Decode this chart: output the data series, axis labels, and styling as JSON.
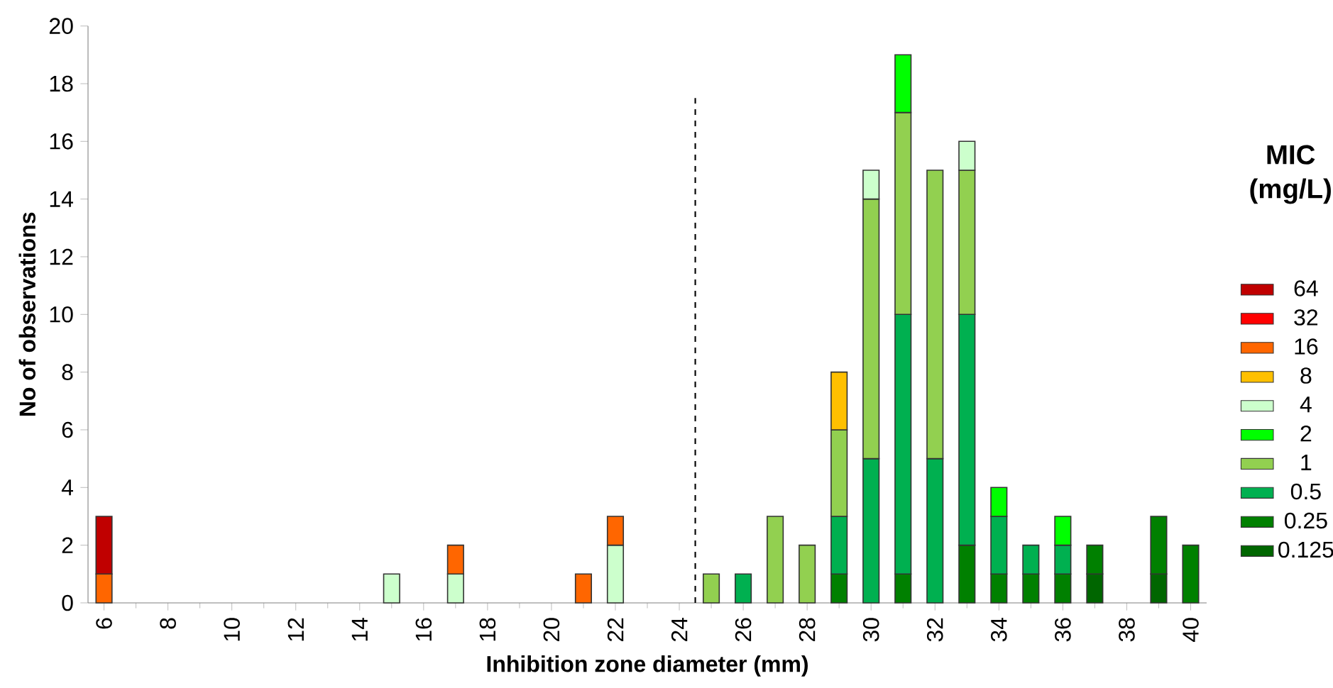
{
  "chart_data": {
    "type": "bar",
    "stacked": true,
    "xlabel": "Inhibition zone diameter (mm)",
    "ylabel": "No of observations",
    "legend_title": "MIC (mg/L)",
    "legend": "right",
    "x": [
      6,
      7,
      8,
      9,
      10,
      11,
      12,
      13,
      14,
      15,
      16,
      17,
      18,
      19,
      20,
      21,
      22,
      23,
      24,
      25,
      26,
      27,
      28,
      29,
      30,
      31,
      32,
      33,
      34,
      35,
      36,
      37,
      38,
      39,
      40
    ],
    "xlim": [
      5.5,
      40.5
    ],
    "xticks": [
      6,
      8,
      10,
      12,
      14,
      16,
      18,
      20,
      22,
      24,
      26,
      28,
      30,
      32,
      34,
      36,
      38,
      40
    ],
    "ylim": [
      0,
      20
    ],
    "yticks": [
      0,
      2,
      4,
      6,
      8,
      10,
      12,
      14,
      16,
      18,
      20
    ],
    "ref_lines": [
      {
        "axis": "x",
        "value": 24.5,
        "line_style": "dashed",
        "color": "#000000"
      }
    ],
    "series": [
      {
        "name": "0.125",
        "color": "#006600",
        "values": [
          null,
          null,
          null,
          null,
          null,
          null,
          null,
          null,
          null,
          null,
          null,
          null,
          null,
          null,
          null,
          null,
          null,
          null,
          null,
          null,
          null,
          null,
          null,
          null,
          null,
          null,
          null,
          null,
          null,
          null,
          null,
          1,
          null,
          1,
          null
        ]
      },
      {
        "name": "0.25",
        "color": "#008000",
        "values": [
          null,
          null,
          null,
          null,
          null,
          null,
          null,
          null,
          null,
          null,
          null,
          null,
          null,
          null,
          null,
          null,
          null,
          null,
          null,
          null,
          null,
          null,
          null,
          1,
          null,
          1,
          null,
          2,
          1,
          1,
          1,
          1,
          null,
          2,
          2
        ]
      },
      {
        "name": "0.5",
        "color": "#00b050",
        "values": [
          null,
          null,
          null,
          null,
          null,
          null,
          null,
          null,
          null,
          null,
          null,
          null,
          null,
          null,
          null,
          null,
          null,
          null,
          null,
          null,
          1,
          null,
          null,
          2,
          5,
          9,
          5,
          8,
          2,
          1,
          1,
          null,
          null,
          null,
          null
        ]
      },
      {
        "name": "1",
        "color": "#92d050",
        "values": [
          null,
          null,
          null,
          null,
          null,
          null,
          null,
          null,
          null,
          null,
          null,
          null,
          null,
          null,
          null,
          null,
          null,
          null,
          null,
          1,
          null,
          3,
          2,
          3,
          9,
          7,
          10,
          5,
          null,
          null,
          null,
          null,
          null,
          null,
          null
        ]
      },
      {
        "name": "2",
        "color": "#00ff00",
        "values": [
          null,
          null,
          null,
          null,
          null,
          null,
          null,
          null,
          null,
          null,
          null,
          null,
          null,
          null,
          null,
          null,
          null,
          null,
          null,
          null,
          null,
          null,
          null,
          null,
          null,
          2,
          null,
          null,
          1,
          null,
          1,
          null,
          null,
          null,
          null
        ]
      },
      {
        "name": "4",
        "color": "#ccffcc",
        "values": [
          null,
          null,
          null,
          null,
          null,
          null,
          null,
          null,
          null,
          1,
          null,
          1,
          null,
          null,
          null,
          null,
          2,
          null,
          null,
          null,
          null,
          null,
          null,
          null,
          1,
          null,
          null,
          1,
          null,
          null,
          null,
          null,
          null,
          null,
          null
        ]
      },
      {
        "name": "8",
        "color": "#ffc000",
        "values": [
          null,
          null,
          null,
          null,
          null,
          null,
          null,
          null,
          null,
          null,
          null,
          null,
          null,
          null,
          null,
          null,
          null,
          null,
          null,
          null,
          null,
          null,
          null,
          2,
          null,
          null,
          null,
          null,
          null,
          null,
          null,
          null,
          null,
          null,
          null
        ]
      },
      {
        "name": "16",
        "color": "#ff6600",
        "values": [
          1,
          null,
          null,
          null,
          null,
          null,
          null,
          null,
          null,
          null,
          null,
          1,
          null,
          null,
          null,
          1,
          1,
          null,
          null,
          null,
          null,
          null,
          null,
          null,
          null,
          null,
          null,
          null,
          null,
          null,
          null,
          null,
          null,
          null,
          null
        ]
      },
      {
        "name": "32",
        "color": "#ff0000",
        "values": [
          null,
          null,
          null,
          null,
          null,
          null,
          null,
          null,
          null,
          null,
          null,
          null,
          null,
          null,
          null,
          null,
          null,
          null,
          null,
          null,
          null,
          null,
          null,
          null,
          null,
          null,
          null,
          null,
          null,
          null,
          null,
          null,
          null,
          null,
          null
        ]
      },
      {
        "name": "64",
        "color": "#c00000",
        "values": [
          2,
          null,
          null,
          null,
          null,
          null,
          null,
          null,
          null,
          null,
          null,
          null,
          null,
          null,
          null,
          null,
          null,
          null,
          null,
          null,
          null,
          null,
          null,
          null,
          null,
          null,
          null,
          null,
          null,
          null,
          null,
          null,
          null,
          null,
          null
        ]
      }
    ]
  }
}
